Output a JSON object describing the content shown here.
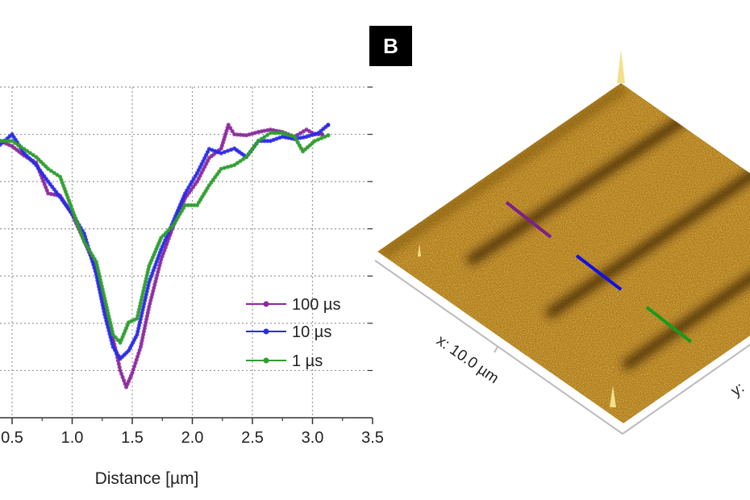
{
  "panel_label": "B",
  "afm_image": {
    "x_axis_label": "x: 10.0 µm",
    "y_axis_label": "y:",
    "colormap": "gold-brown",
    "profile_line_colors": [
      "#7b1f8c",
      "#1010e0",
      "#1a9a1a"
    ]
  },
  "chart_data": {
    "type": "line",
    "title": "",
    "xlabel": "Distance [µm]",
    "ylabel": "",
    "xlim": [
      0.4,
      3.5
    ],
    "ylim": [
      0,
      7
    ],
    "x_ticks": [
      "0.5",
      "1.0",
      "1.5",
      "2.0",
      "2.5",
      "3.0",
      "3.5"
    ],
    "x_tick_values": [
      0.5,
      1.0,
      1.5,
      2.0,
      2.5,
      3.0,
      3.5
    ],
    "grid": true,
    "legend_position": "right",
    "series": [
      {
        "name": "100 µs",
        "color": "#8b2a9e",
        "x": [
          0.4,
          0.5,
          0.6,
          0.7,
          0.8,
          0.9,
          1.0,
          1.1,
          1.2,
          1.3,
          1.37,
          1.4,
          1.45,
          1.5,
          1.57,
          1.64,
          1.74,
          1.84,
          1.94,
          2.04,
          2.14,
          2.24,
          2.3,
          2.35,
          2.45,
          2.55,
          2.65,
          2.75,
          2.85,
          2.95,
          3.02,
          3.08
        ],
        "y": [
          5.86,
          5.75,
          5.55,
          5.4,
          4.75,
          4.7,
          4.3,
          3.75,
          3.15,
          2.1,
          1.35,
          1.0,
          0.65,
          0.95,
          1.5,
          2.35,
          3.35,
          4.05,
          4.65,
          5.0,
          5.5,
          5.7,
          6.2,
          6.0,
          5.98,
          6.05,
          6.1,
          6.05,
          5.95,
          6.1,
          6.0,
          6.0
        ]
      },
      {
        "name": "10 µs",
        "color": "#2a2ae8",
        "x": [
          0.4,
          0.5,
          0.6,
          0.7,
          0.8,
          0.9,
          1.0,
          1.1,
          1.2,
          1.27,
          1.34,
          1.4,
          1.47,
          1.54,
          1.64,
          1.74,
          1.84,
          1.94,
          2.04,
          2.14,
          2.24,
          2.35,
          2.45,
          2.55,
          2.65,
          2.75,
          2.85,
          2.95,
          3.05,
          3.13
        ],
        "y": [
          5.78,
          6.0,
          5.6,
          5.35,
          5.0,
          4.67,
          4.32,
          3.9,
          3.04,
          2.19,
          1.5,
          1.25,
          1.42,
          1.76,
          2.87,
          3.56,
          4.15,
          4.75,
          5.18,
          5.69,
          5.6,
          5.7,
          5.52,
          5.86,
          5.86,
          5.95,
          5.9,
          5.95,
          6.03,
          6.2
        ]
      },
      {
        "name": "1 µs",
        "color": "#2e9e2e",
        "x": [
          0.4,
          0.5,
          0.6,
          0.7,
          0.8,
          0.9,
          1.0,
          1.1,
          1.2,
          1.27,
          1.34,
          1.4,
          1.47,
          1.54,
          1.64,
          1.74,
          1.84,
          1.94,
          2.04,
          2.14,
          2.24,
          2.35,
          2.45,
          2.55,
          2.65,
          2.75,
          2.85,
          2.92,
          3.02,
          3.13
        ],
        "y": [
          5.86,
          5.86,
          5.69,
          5.52,
          5.27,
          5.1,
          4.41,
          3.73,
          3.3,
          2.53,
          1.76,
          1.59,
          2.02,
          2.1,
          3.21,
          3.81,
          4.07,
          4.5,
          4.5,
          4.92,
          5.27,
          5.35,
          5.52,
          5.86,
          6.03,
          6.03,
          5.95,
          5.64,
          5.86,
          5.98
        ]
      }
    ]
  }
}
